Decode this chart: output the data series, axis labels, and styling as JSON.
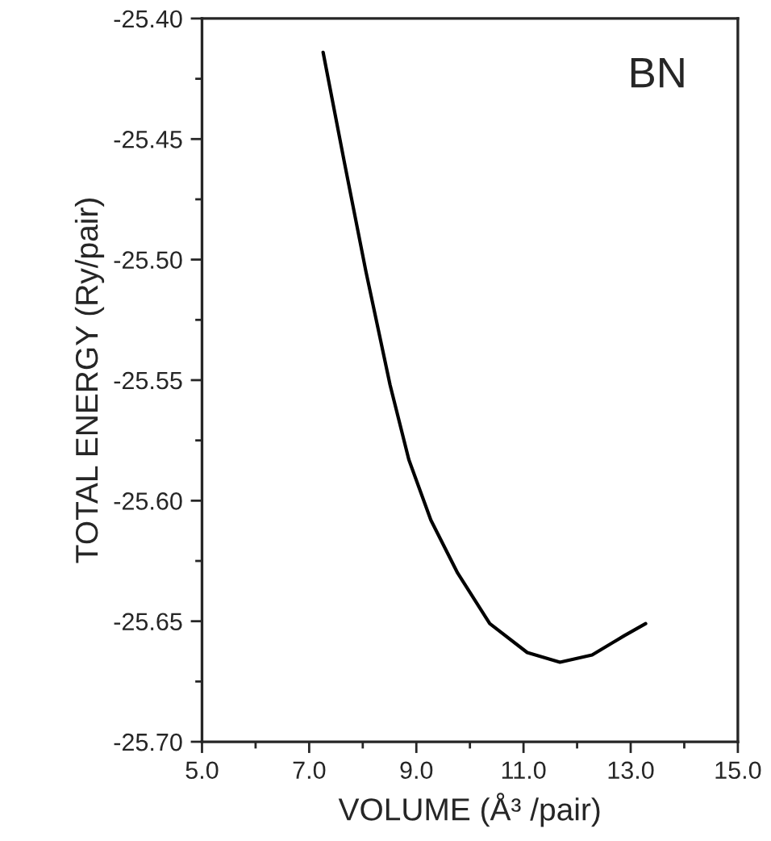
{
  "chart_data": {
    "type": "line",
    "xlabel": "VOLUME (Å³ /pair)",
    "ylabel": "TOTAL ENERGY (Ry/pair)",
    "annotations": [
      "BN"
    ],
    "series": [
      {
        "color": "#000000",
        "x": [
          7.26,
          7.66,
          8.06,
          8.51,
          8.86,
          9.27,
          9.77,
          10.37,
          11.07,
          11.68,
          12.28,
          12.88,
          13.28
        ],
        "values": [
          -25.414,
          -25.46,
          -25.505,
          -25.552,
          -25.583,
          -25.608,
          -25.63,
          -25.651,
          -25.663,
          -25.667,
          -25.664,
          -25.656,
          -25.651
        ]
      }
    ],
    "xlim": [
      5.0,
      15.0
    ],
    "xticks": [
      {
        "value": 5,
        "label": "5.0"
      },
      {
        "value": 7,
        "label": "7.0"
      },
      {
        "value": 9,
        "label": "9.0"
      },
      {
        "value": 11,
        "label": "11.0"
      },
      {
        "value": 13,
        "label": "13.0"
      },
      {
        "value": 15,
        "label": "15.0"
      }
    ],
    "ylim": [
      -25.7,
      -25.4
    ],
    "yticks": [
      {
        "value": -25.7,
        "label": "-25.70"
      },
      {
        "value": -25.65,
        "label": "-25.65"
      },
      {
        "value": -25.6,
        "label": "-25.60"
      },
      {
        "value": -25.55,
        "label": "-25.55"
      },
      {
        "value": -25.5,
        "label": "-25.50"
      },
      {
        "value": -25.45,
        "label": "-25.45"
      },
      {
        "value": -25.4,
        "label": "-25.40"
      }
    ],
    "grid": false,
    "legend": false,
    "marker": "none",
    "line_style": "solid"
  }
}
